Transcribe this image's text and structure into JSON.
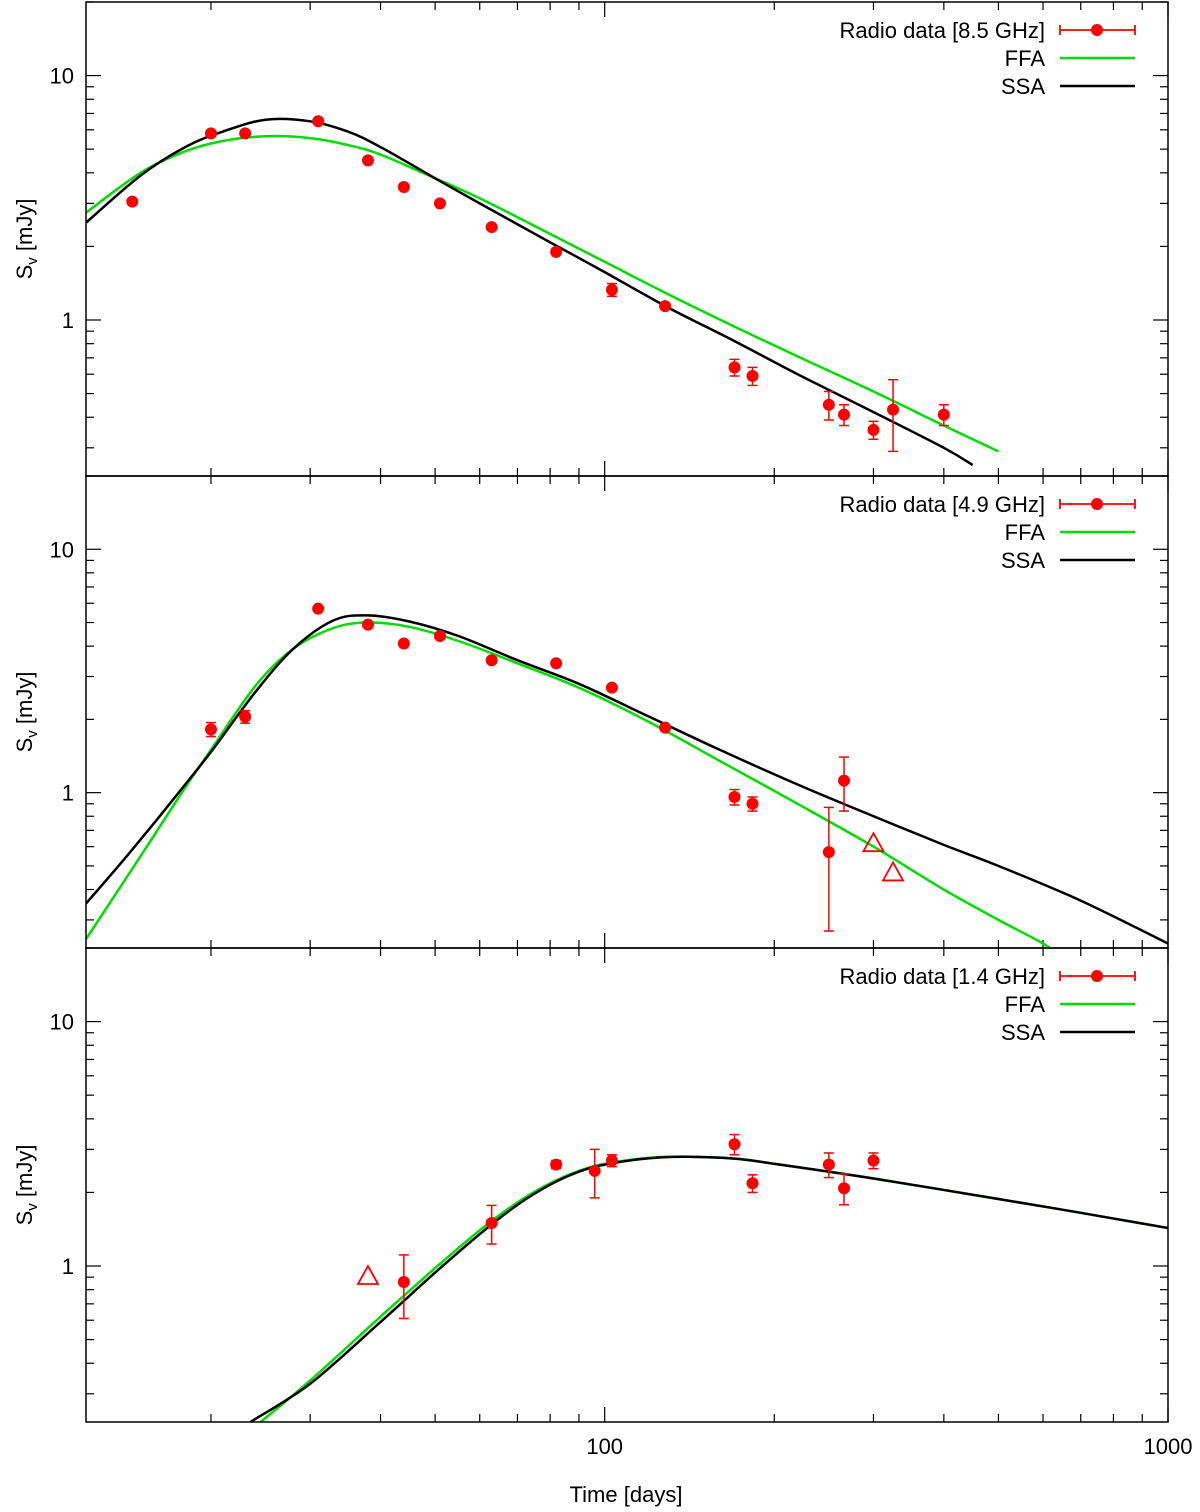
{
  "chart_data": {
    "type": "scatter",
    "shared_x": {
      "label": "Time [days]",
      "scale": "log",
      "range": [
        12,
        1000
      ],
      "tick_labels": [
        "100",
        "1000"
      ],
      "tick_values": [
        100,
        1000
      ]
    },
    "panels": [
      {
        "id": "8.5GHz",
        "ylabel": "S_v [mJy]",
        "ylabel_main": "S",
        "ylabel_sub": "v",
        "ylabel_unit": " [mJy]",
        "yscale": "log",
        "ylim": [
          0.23,
          20
        ],
        "ytick_labels": [
          "1",
          "10"
        ],
        "ytick_values": [
          1,
          10
        ],
        "legend": {
          "data": "Radio data [8.5 GHz]",
          "ffa": "FFA",
          "ssa": "SSA",
          "placement": "top-right"
        },
        "points": [
          {
            "x": 14.5,
            "y": 3.05,
            "err": 0.08
          },
          {
            "x": 20.0,
            "y": 5.8,
            "err": 0.15
          },
          {
            "x": 23.0,
            "y": 5.8,
            "err": 0.15
          },
          {
            "x": 31.0,
            "y": 6.5,
            "err": 0.15
          },
          {
            "x": 38.0,
            "y": 4.5,
            "err": 0.12
          },
          {
            "x": 44.0,
            "y": 3.5,
            "err": 0.1
          },
          {
            "x": 51.0,
            "y": 3.0,
            "err": 0.08
          },
          {
            "x": 63.0,
            "y": 2.4,
            "err": 0.07
          },
          {
            "x": 82.0,
            "y": 1.9,
            "err": 0.06
          },
          {
            "x": 103.0,
            "y": 1.33,
            "err": 0.08
          },
          {
            "x": 128.0,
            "y": 1.14,
            "err": 0.04
          },
          {
            "x": 170.0,
            "y": 0.64,
            "err": 0.05
          },
          {
            "x": 183.0,
            "y": 0.59,
            "err": 0.05
          },
          {
            "x": 250.0,
            "y": 0.45,
            "err": 0.06
          },
          {
            "x": 266.0,
            "y": 0.41,
            "err": 0.04
          },
          {
            "x": 300.0,
            "y": 0.355,
            "err": 0.03
          },
          {
            "x": 325.0,
            "y": 0.43,
            "err": 0.14
          },
          {
            "x": 400.0,
            "y": 0.41,
            "err": 0.04
          }
        ],
        "upper_limits": [],
        "series": [
          {
            "name": "FFA",
            "color": "#00dd00",
            "x": [
              12,
              15,
              18,
              21,
              25,
              30,
              35,
              40,
              50,
              60,
              80,
              100,
              130,
              170,
              220,
              300,
              400,
              500
            ],
            "y": [
              2.75,
              4.0,
              4.9,
              5.4,
              5.65,
              5.55,
              5.2,
              4.75,
              3.8,
              3.15,
              2.25,
              1.73,
              1.27,
              0.94,
              0.71,
              0.51,
              0.37,
              0.29
            ]
          },
          {
            "name": "SSA",
            "color": "#000000",
            "x": [
              12,
              15,
              18,
              21,
              25,
              30,
              35,
              40,
              50,
              60,
              80,
              100,
              130,
              170,
              220,
              300,
              400,
              450
            ],
            "y": [
              2.5,
              3.9,
              5.1,
              5.9,
              6.6,
              6.5,
              5.9,
              5.1,
              3.8,
              3.0,
              2.08,
              1.57,
              1.12,
              0.82,
              0.6,
              0.42,
              0.3,
              0.255
            ]
          }
        ]
      },
      {
        "id": "4.9GHz",
        "ylabel": "S_v [mJy]",
        "ylabel_main": "S",
        "ylabel_sub": "v",
        "ylabel_unit": " [mJy]",
        "yscale": "log",
        "ylim": [
          0.23,
          20
        ],
        "ytick_labels": [
          "1",
          "10"
        ],
        "ytick_values": [
          1,
          10
        ],
        "legend": {
          "data": "Radio data [4.9 GHz]",
          "ffa": "FFA",
          "ssa": "SSA",
          "placement": "top-right"
        },
        "points": [
          {
            "x": 20.0,
            "y": 1.82,
            "err": 0.12
          },
          {
            "x": 23.0,
            "y": 2.05,
            "err": 0.12
          },
          {
            "x": 31.0,
            "y": 5.7,
            "err": 0.2
          },
          {
            "x": 38.0,
            "y": 4.9,
            "err": 0.15
          },
          {
            "x": 44.0,
            "y": 4.1,
            "err": 0.12
          },
          {
            "x": 51.0,
            "y": 4.4,
            "err": 0.12
          },
          {
            "x": 63.0,
            "y": 3.5,
            "err": 0.1
          },
          {
            "x": 82.0,
            "y": 3.4,
            "err": 0.1
          },
          {
            "x": 103.0,
            "y": 2.7,
            "err": 0.08
          },
          {
            "x": 128.0,
            "y": 1.85,
            "err": 0.06
          },
          {
            "x": 170.0,
            "y": 0.96,
            "err": 0.07
          },
          {
            "x": 183.0,
            "y": 0.9,
            "err": 0.06
          },
          {
            "x": 250.0,
            "y": 0.57,
            "err": 0.3
          },
          {
            "x": 266.0,
            "y": 1.12,
            "err": 0.28
          }
        ],
        "upper_limits": [
          {
            "x": 300.0,
            "y": 0.62
          },
          {
            "x": 325.0,
            "y": 0.47
          }
        ],
        "series": [
          {
            "name": "FFA",
            "color": "#00dd00",
            "x": [
              12,
              14,
              16,
              18,
              20,
              24,
              28,
              33,
              38,
              45,
              55,
              70,
              90,
              120,
              160,
              220,
              300,
              400,
              500,
              600,
              650
            ],
            "y": [
              0.25,
              0.43,
              0.69,
              1.05,
              1.5,
              2.75,
              3.9,
              4.75,
              5.0,
              4.8,
              4.2,
              3.4,
              2.7,
              1.95,
              1.35,
              0.9,
              0.6,
              0.4,
              0.3,
              0.24,
              0.21
            ]
          },
          {
            "name": "SSA",
            "color": "#000000",
            "x": [
              12,
              14,
              16,
              18,
              20,
              24,
              28,
              33,
              38,
              45,
              55,
              70,
              90,
              120,
              160,
              220,
              300,
              400,
              500,
              700,
              1000
            ],
            "y": [
              0.35,
              0.53,
              0.77,
              1.08,
              1.47,
              2.6,
              3.9,
              5.1,
              5.35,
              5.05,
              4.4,
              3.5,
              2.8,
              2.05,
              1.5,
              1.08,
              0.8,
              0.61,
              0.5,
              0.36,
              0.24
            ]
          }
        ]
      },
      {
        "id": "1.4GHz",
        "ylabel": "S_v [mJy]",
        "ylabel_main": "S",
        "ylabel_sub": "v",
        "ylabel_unit": " [mJy]",
        "yscale": "log",
        "ylim": [
          0.23,
          20
        ],
        "ytick_labels": [
          "1",
          "10"
        ],
        "ytick_values": [
          1,
          10
        ],
        "legend": {
          "data": "Radio data [1.4 GHz]",
          "ffa": "FFA",
          "ssa": "SSA",
          "placement": "top-right"
        },
        "points": [
          {
            "x": 44.0,
            "y": 0.86,
            "err": 0.25
          },
          {
            "x": 63.0,
            "y": 1.5,
            "err": 0.27
          },
          {
            "x": 82.0,
            "y": 2.6,
            "err": 0.1
          },
          {
            "x": 96.0,
            "y": 2.45,
            "err": 0.55
          },
          {
            "x": 103.0,
            "y": 2.7,
            "err": 0.15
          },
          {
            "x": 170.0,
            "y": 3.15,
            "err": 0.3
          },
          {
            "x": 183.0,
            "y": 2.18,
            "err": 0.18
          },
          {
            "x": 250.0,
            "y": 2.6,
            "err": 0.3
          },
          {
            "x": 266.0,
            "y": 2.08,
            "err": 0.3
          },
          {
            "x": 300.0,
            "y": 2.7,
            "err": 0.2
          }
        ],
        "upper_limits": [
          {
            "x": 38.0,
            "y": 0.91
          }
        ],
        "series": [
          {
            "name": "FFA",
            "color": "#00dd00",
            "x": [
              24.5,
              30,
              40,
              50,
              60,
              70,
              80,
              90,
              100,
              120,
              140,
              170,
              200,
              300,
              500,
              700,
              1000
            ],
            "y": [
              0.23,
              0.34,
              0.62,
              0.98,
              1.4,
              1.82,
              2.18,
              2.45,
              2.62,
              2.77,
              2.8,
              2.75,
              2.62,
              2.28,
              1.88,
              1.65,
              1.43
            ]
          },
          {
            "name": "SSA",
            "color": "#000000",
            "x": [
              23.5,
              30,
              40,
              50,
              60,
              70,
              80,
              90,
              100,
              120,
              140,
              170,
              200,
              300,
              500,
              700,
              1000
            ],
            "y": [
              0.23,
              0.33,
              0.59,
              0.94,
              1.35,
              1.78,
              2.15,
              2.43,
              2.6,
              2.76,
              2.8,
              2.75,
              2.62,
              2.28,
              1.88,
              1.65,
              1.43
            ]
          }
        ]
      }
    ]
  },
  "colors": {
    "data": "#ff0000",
    "ffa": "#00dd00",
    "ssa": "#000000"
  }
}
